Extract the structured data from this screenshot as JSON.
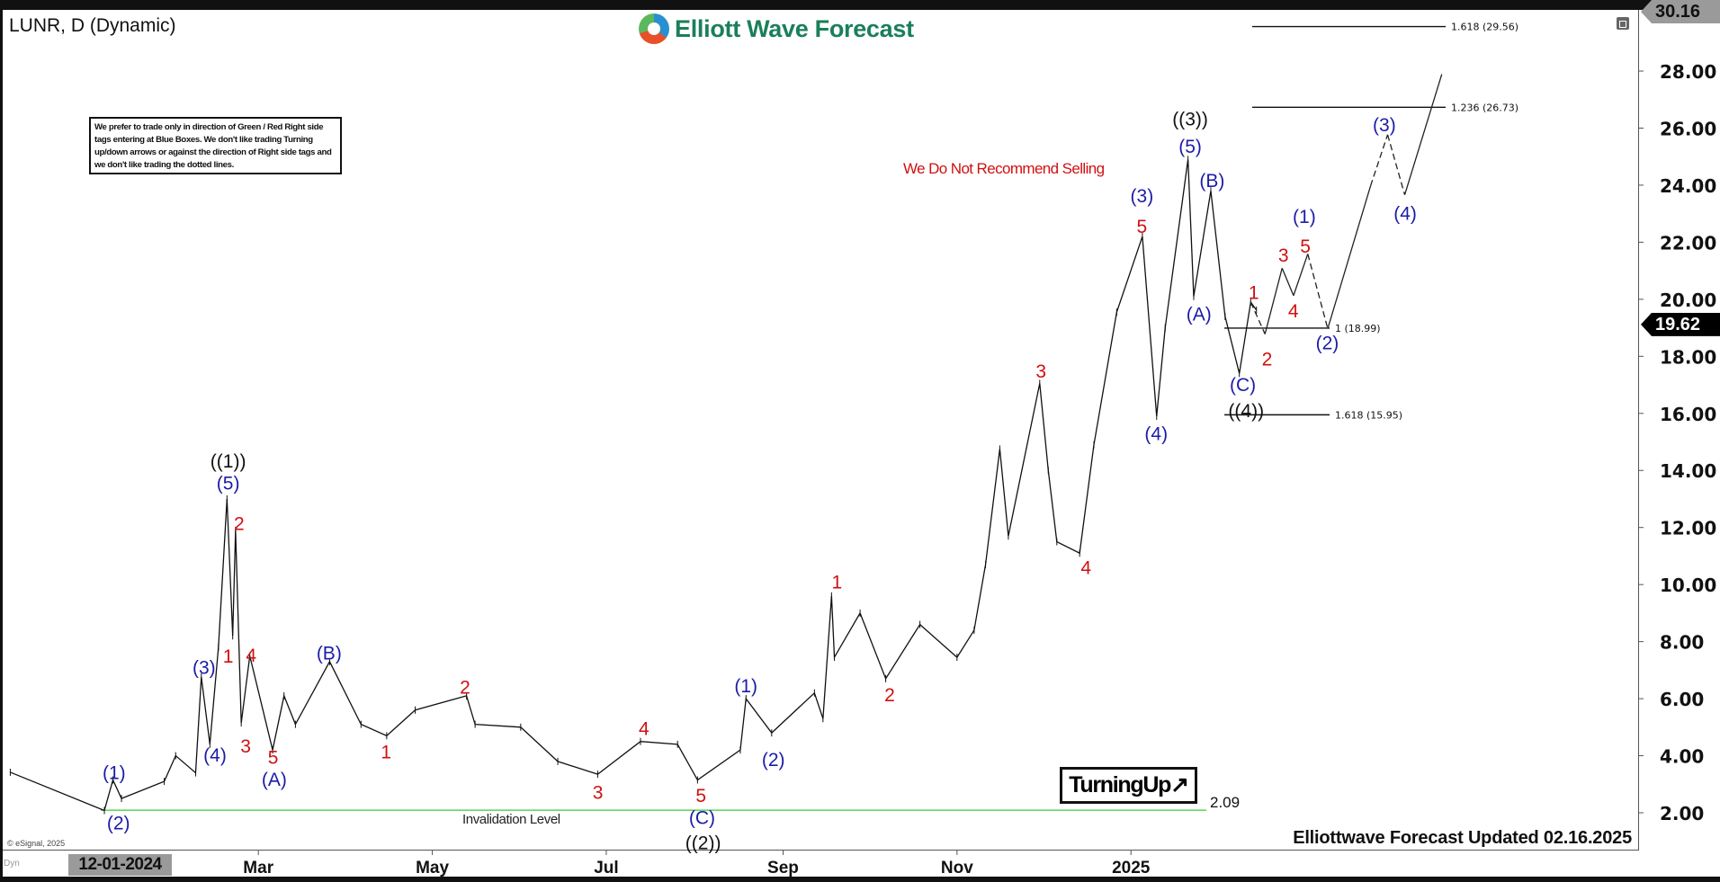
{
  "header": {
    "symbol_title": "LUNR, D (Dynamic)",
    "logo_text": "Elliott Wave Forecast"
  },
  "note_box": "We prefer to trade only in direction of Green / Red Right side tags entering at Blue Boxes. We don't like trading Turning up/down arrows or against the direction of Right side tags and we don't like trading the dotted lines.",
  "warning_text": "We Do Not Recommend Selling",
  "turning_label": "TurningUp↗",
  "footer": {
    "updated": "Elliottwave Forecast Updated 02.16.2025",
    "copyright": "© eSignal, 2025",
    "dyn": "Dyn",
    "cursor_date": "12-01-2024"
  },
  "price_tags": {
    "top": "30.16",
    "current": "19.62",
    "top_value": 30.16,
    "current_value": 19.62
  },
  "chart_data": {
    "type": "line",
    "title": "",
    "symbol": "LUNR",
    "interval": "D",
    "ylim": [
      0.9,
      30.16
    ],
    "grid": false,
    "y_ticks": [
      "2.00",
      "4.00",
      "6.00",
      "8.00",
      "10.00",
      "12.00",
      "14.00",
      "16.00",
      "18.00",
      "20.00",
      "22.00",
      "24.00",
      "26.00",
      "28.00"
    ],
    "x_ticks": [
      {
        "label": "Mar",
        "date": "2024-03-01"
      },
      {
        "label": "May",
        "date": "2024-05-01"
      },
      {
        "label": "Jul",
        "date": "2024-07-01"
      },
      {
        "label": "Sep",
        "date": "2024-09-01"
      },
      {
        "label": "Nov",
        "date": "2024-11-01"
      },
      {
        "label": "2025",
        "date": "2025-01-01"
      }
    ],
    "price_path": [
      [
        "2023-12-05",
        3.42
      ],
      [
        "2024-01-07",
        2.08
      ],
      [
        "2024-01-10",
        3.15
      ],
      [
        "2024-01-13",
        2.5
      ],
      [
        "2024-01-28",
        3.1
      ],
      [
        "2024-02-01",
        4.0
      ],
      [
        "2024-02-08",
        3.4
      ],
      [
        "2024-02-10",
        6.76
      ],
      [
        "2024-02-13",
        4.4
      ],
      [
        "2024-02-16",
        7.8
      ],
      [
        "2024-02-19",
        13.0
      ],
      [
        "2024-02-21",
        8.2
      ],
      [
        "2024-02-22",
        11.9
      ],
      [
        "2024-02-24",
        5.15
      ],
      [
        "2024-02-27",
        7.5
      ],
      [
        "2024-03-06",
        4.2
      ],
      [
        "2024-03-10",
        6.1
      ],
      [
        "2024-03-14",
        5.1
      ],
      [
        "2024-03-26",
        7.3
      ],
      [
        "2024-04-06",
        5.1
      ],
      [
        "2024-04-15",
        4.7
      ],
      [
        "2024-04-25",
        5.6
      ],
      [
        "2024-05-13",
        6.1
      ],
      [
        "2024-05-16",
        5.1
      ],
      [
        "2024-06-01",
        5.0
      ],
      [
        "2024-06-14",
        3.8
      ],
      [
        "2024-06-28",
        3.35
      ],
      [
        "2024-07-13",
        4.5
      ],
      [
        "2024-07-26",
        4.4
      ],
      [
        "2024-08-02",
        3.15
      ],
      [
        "2024-08-17",
        4.2
      ],
      [
        "2024-08-19",
        6.0
      ],
      [
        "2024-08-28",
        4.8
      ],
      [
        "2024-09-12",
        6.2
      ],
      [
        "2024-09-15",
        5.3
      ],
      [
        "2024-09-18",
        9.6
      ],
      [
        "2024-09-19",
        7.45
      ],
      [
        "2024-09-28",
        9.0
      ],
      [
        "2024-10-07",
        6.7
      ],
      [
        "2024-10-19",
        8.6
      ],
      [
        "2024-11-01",
        7.45
      ],
      [
        "2024-11-07",
        8.4
      ],
      [
        "2024-11-11",
        10.7
      ],
      [
        "2024-11-16",
        14.75
      ],
      [
        "2024-11-19",
        11.7
      ],
      [
        "2024-11-30",
        17.05
      ],
      [
        "2024-12-03",
        14.0
      ],
      [
        "2024-12-06",
        11.5
      ],
      [
        "2024-12-14",
        11.1
      ],
      [
        "2024-12-19",
        14.9
      ],
      [
        "2024-12-27",
        19.55
      ],
      [
        "2025-01-05",
        22.2
      ],
      [
        "2025-01-10",
        15.9
      ],
      [
        "2025-01-13",
        19.0
      ],
      [
        "2025-01-21",
        24.9
      ],
      [
        "2025-01-23",
        20.1
      ],
      [
        "2025-01-29",
        23.8
      ],
      [
        "2025-02-03",
        19.4
      ],
      [
        "2025-02-08",
        17.4
      ],
      [
        "2025-02-12",
        19.9
      ],
      [
        "2025-02-14",
        19.62
      ]
    ],
    "forecast_path": [
      [
        "2025-02-12",
        19.9
      ],
      [
        "2025-02-17",
        18.78
      ],
      [
        "2025-02-23",
        21.09
      ],
      [
        "2025-02-27",
        20.13
      ],
      [
        "2025-03-04",
        21.59
      ],
      [
        "2025-03-11",
        18.97
      ],
      [
        "2025-03-26",
        23.97
      ],
      [
        "2025-04-01",
        25.77
      ],
      [
        "2025-04-07",
        23.66
      ],
      [
        "2025-04-20",
        27.89
      ]
    ],
    "fib_levels": [
      {
        "label": "1.618 (29.56)",
        "price": 29.56
      },
      {
        "label": "1.236 (26.73)",
        "price": 26.73
      },
      {
        "label": "1 (18.99)",
        "price": 18.99
      },
      {
        "label": "1.618 (15.95)",
        "price": 15.95
      }
    ],
    "invalidation": {
      "label": "Invalidation Level",
      "value_label": "2.09",
      "price": 2.09,
      "color": "#33cc33"
    },
    "colors": {
      "black": "#111111",
      "blue": "#1c1ca8",
      "red": "#d01010"
    },
    "wave_labels": [
      {
        "text": "((1))",
        "color": "black"
      },
      {
        "text": "((2))",
        "color": "black"
      },
      {
        "text": "((3))",
        "color": "black"
      },
      {
        "text": "((4))",
        "color": "black"
      },
      {
        "text": "(1)",
        "color": "blue"
      },
      {
        "text": "(2)",
        "color": "blue"
      },
      {
        "text": "(3)",
        "color": "blue"
      },
      {
        "text": "(4)",
        "color": "blue"
      },
      {
        "text": "(5)",
        "color": "blue"
      },
      {
        "text": "(A)",
        "color": "blue"
      },
      {
        "text": "(B)",
        "color": "blue"
      },
      {
        "text": "(C)",
        "color": "blue"
      },
      {
        "text": "(1)",
        "color": "blue"
      },
      {
        "text": "(2)",
        "color": "blue"
      },
      {
        "text": "(3)",
        "color": "blue"
      },
      {
        "text": "(4)",
        "color": "blue"
      },
      {
        "text": "(5)",
        "color": "blue"
      },
      {
        "text": "(A)",
        "color": "blue"
      },
      {
        "text": "(B)",
        "color": "blue"
      },
      {
        "text": "(C)",
        "color": "blue"
      },
      {
        "text": "(1)",
        "color": "blue"
      },
      {
        "text": "(2)",
        "color": "blue"
      },
      {
        "text": "(3)",
        "color": "blue"
      },
      {
        "text": "(4)",
        "color": "blue"
      },
      {
        "text": "2",
        "color": "red"
      },
      {
        "text": "1",
        "color": "red"
      },
      {
        "text": "4",
        "color": "red"
      },
      {
        "text": "3",
        "color": "red"
      },
      {
        "text": "5",
        "color": "red"
      },
      {
        "text": "1",
        "color": "red"
      },
      {
        "text": "2",
        "color": "red"
      },
      {
        "text": "3",
        "color": "red"
      },
      {
        "text": "4",
        "color": "red"
      },
      {
        "text": "5",
        "color": "red"
      },
      {
        "text": "1",
        "color": "red"
      },
      {
        "text": "2",
        "color": "red"
      },
      {
        "text": "3",
        "color": "red"
      },
      {
        "text": "4",
        "color": "red"
      },
      {
        "text": "5",
        "color": "red"
      },
      {
        "text": "1",
        "color": "red"
      },
      {
        "text": "2",
        "color": "red"
      },
      {
        "text": "3",
        "color": "red"
      },
      {
        "text": "4",
        "color": "red"
      },
      {
        "text": "5",
        "color": "red"
      }
    ]
  }
}
